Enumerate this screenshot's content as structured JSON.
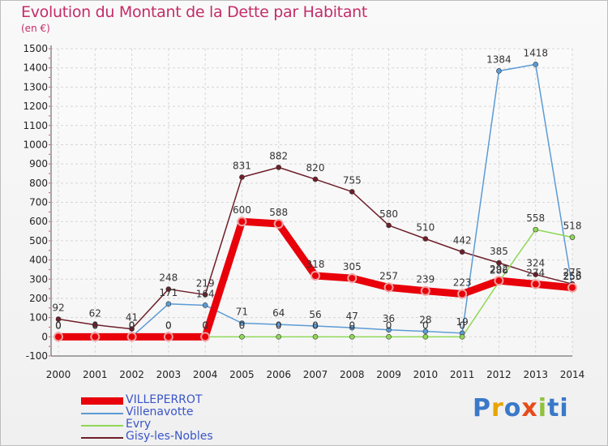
{
  "chart_data": {
    "type": "line",
    "title": "Evolution du Montant de la Dette par Habitant",
    "unit": "(en €)",
    "x": [
      "2000",
      "2001",
      "2002",
      "2003",
      "2004",
      "2005",
      "2006",
      "2007",
      "2008",
      "2009",
      "2010",
      "2011",
      "2012",
      "2013",
      "2014"
    ],
    "ylim": [
      -100,
      1500
    ],
    "yticks": [
      -100,
      0,
      100,
      200,
      300,
      400,
      500,
      600,
      700,
      800,
      900,
      1000,
      1100,
      1200,
      1300,
      1400,
      1500
    ],
    "grid": true,
    "legend_position": "bottom-left",
    "series": [
      {
        "name": "VILLEPERROT",
        "color": "#e8000a",
        "values": [
          0,
          0,
          0,
          0,
          0,
          600,
          588,
          318,
          305,
          257,
          239,
          223,
          292,
          274,
          256
        ]
      },
      {
        "name": "Villenavotte",
        "color": "#5b9bd5",
        "values": [
          0,
          0,
          0,
          171,
          164,
          71,
          64,
          56,
          47,
          36,
          28,
          19,
          1384,
          1418,
          255
        ]
      },
      {
        "name": "Evry",
        "color": "#8fd856",
        "values": [
          0,
          0,
          0,
          0,
          0,
          0,
          0,
          0,
          0,
          0,
          0,
          0,
          286,
          558,
          518
        ]
      },
      {
        "name": "Gisy-les-Nobles",
        "color": "#6e1f2a",
        "values": [
          92,
          62,
          41,
          248,
          219,
          831,
          882,
          820,
          755,
          580,
          510,
          442,
          385,
          324,
          275
        ]
      }
    ]
  },
  "logo": {
    "letters": [
      "P",
      "r",
      "o",
      "x",
      "i",
      "t",
      "i"
    ],
    "colors": [
      "#3a79c8",
      "#e8a400",
      "#3a79c8",
      "#e84a1a",
      "#8fc23a",
      "#3a79c8",
      "#3a79c8"
    ]
  }
}
